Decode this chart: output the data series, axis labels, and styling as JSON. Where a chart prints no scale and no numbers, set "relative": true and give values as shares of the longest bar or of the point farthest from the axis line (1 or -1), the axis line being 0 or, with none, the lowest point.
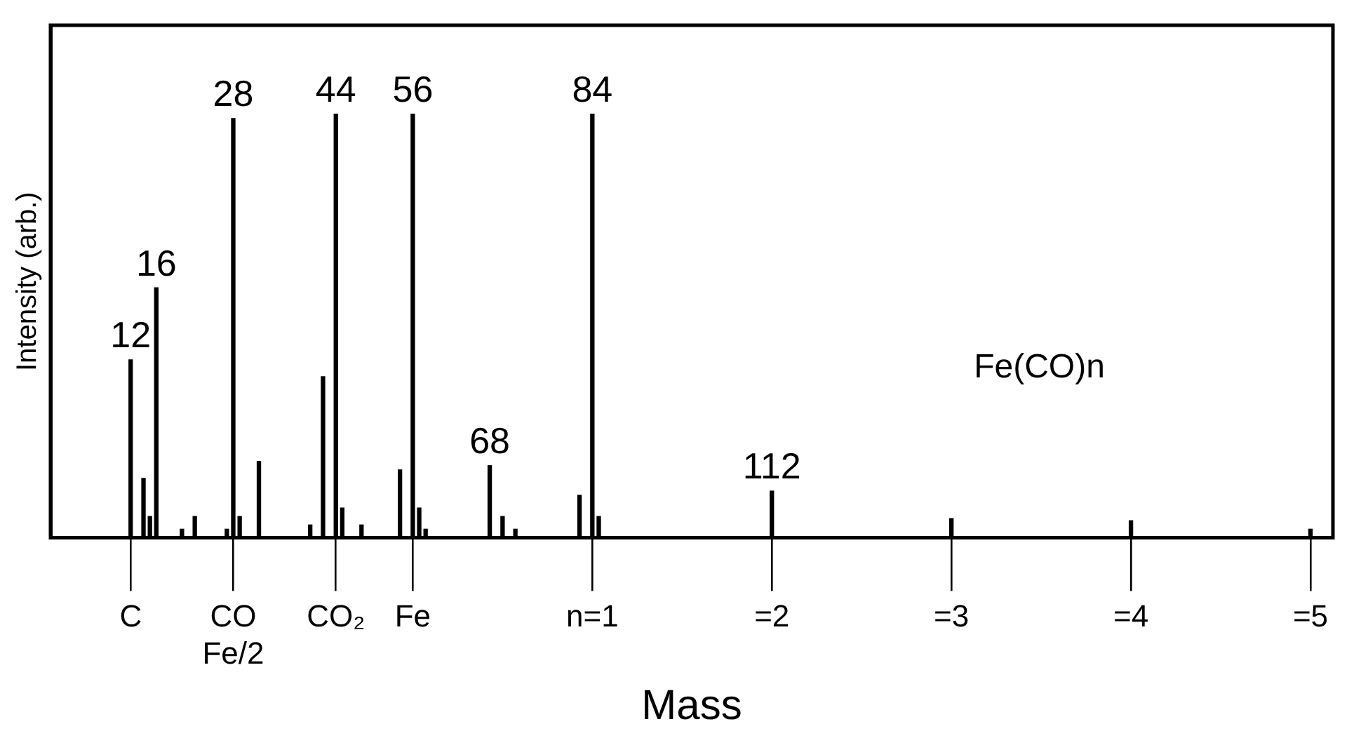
{
  "chart_data": {
    "type": "bar",
    "xlabel": "Mass",
    "ylabel": "Intensity (arb.)",
    "relative": true,
    "color": "#000000",
    "categories": [
      null,
      null,
      null,
      null,
      null,
      null,
      null,
      null,
      null,
      null,
      null,
      null,
      "C",
      null,
      null,
      null,
      null,
      null,
      null,
      null,
      null,
      null,
      null,
      null,
      null,
      null,
      null,
      null,
      "CO\nFe/2",
      null,
      null,
      null,
      null,
      null,
      null,
      null,
      null,
      null,
      null,
      null,
      null,
      null,
      null,
      null,
      "CO₂",
      null,
      null,
      null,
      null,
      null,
      null,
      null,
      null,
      null,
      null,
      null,
      "Fe",
      null,
      null,
      null,
      null,
      null,
      null,
      null,
      null,
      null,
      null,
      null,
      null,
      null,
      null,
      null,
      null,
      null,
      null,
      null,
      null,
      null,
      null,
      null,
      null,
      null,
      null,
      null,
      "n=1",
      null,
      null,
      null,
      null,
      null,
      null,
      null,
      null,
      null,
      null,
      null,
      null,
      null,
      null,
      null,
      null,
      null,
      null,
      null,
      null,
      null,
      null,
      null,
      null,
      null,
      null,
      null,
      "=2",
      null,
      null,
      null,
      null,
      null,
      null,
      null,
      null,
      null,
      null,
      null,
      null,
      null,
      null,
      null,
      null,
      null,
      null,
      null,
      null,
      null,
      null,
      null,
      null,
      null,
      null,
      null,
      "=3",
      null,
      null,
      null,
      null,
      null,
      null,
      null,
      null,
      null,
      null,
      null,
      null,
      null,
      null,
      null,
      null,
      null,
      null,
      null,
      null,
      null,
      null,
      null,
      null,
      null,
      null,
      null,
      "=4",
      null,
      null,
      null,
      null,
      null,
      null,
      null,
      null,
      null,
      null,
      null,
      null,
      null,
      null,
      null,
      null,
      null,
      null,
      null,
      null,
      null,
      null,
      null,
      null,
      null,
      null,
      null,
      "=5",
      null,
      null,
      null
    ],
    "values": [
      null,
      null,
      null,
      null,
      null,
      null,
      null,
      null,
      null,
      null,
      null,
      null,
      0.42,
      null,
      0.14,
      0.05,
      0.59,
      null,
      null,
      null,
      0.02,
      null,
      0.05,
      null,
      null,
      null,
      null,
      0.02,
      0.99,
      0.05,
      null,
      null,
      0.18,
      null,
      null,
      null,
      null,
      null,
      null,
      null,
      0.03,
      null,
      0.38,
      null,
      1,
      0.07,
      null,
      null,
      0.03,
      null,
      null,
      null,
      null,
      null,
      0.16,
      null,
      1,
      0.07,
      0.02,
      null,
      null,
      null,
      null,
      null,
      null,
      null,
      null,
      null,
      0.17,
      null,
      0.05,
      null,
      0.02,
      null,
      null,
      null,
      null,
      null,
      null,
      null,
      null,
      null,
      0.1,
      null,
      1,
      0.05,
      null,
      null,
      null,
      null,
      null,
      null,
      null,
      null,
      null,
      null,
      null,
      null,
      null,
      null,
      null,
      null,
      null,
      null,
      null,
      null,
      null,
      null,
      null,
      null,
      null,
      null,
      0.11,
      null,
      null,
      null,
      null,
      null,
      null,
      null,
      null,
      null,
      null,
      null,
      null,
      null,
      null,
      null,
      null,
      null,
      null,
      null,
      null,
      null,
      null,
      null,
      null,
      null,
      null,
      null,
      0.045,
      null,
      null,
      null,
      null,
      null,
      null,
      null,
      null,
      null,
      null,
      null,
      null,
      null,
      null,
      null,
      null,
      null,
      null,
      null,
      null,
      null,
      null,
      null,
      null,
      null,
      null,
      null,
      0.04,
      null,
      null,
      null,
      null,
      null,
      null,
      null,
      null,
      null,
      null,
      null,
      null,
      null,
      null,
      null,
      null,
      null,
      null,
      null,
      null,
      null,
      null,
      null,
      null,
      null,
      null,
      null,
      0.02,
      null,
      null,
      null
    ],
    "grid": false,
    "legend": false,
    "annotations": [
      {
        "text": "12",
        "y": 0.42
      },
      {
        "text": "16",
        "y": 0.59
      },
      {
        "text": "28",
        "y": 0.99
      },
      {
        "text": "44",
        "y": 1
      },
      {
        "text": "56",
        "y": 1
      },
      {
        "text": "68",
        "y": 0.17
      },
      {
        "text": "84",
        "y": 1
      },
      {
        "text": "112",
        "y": 0.11
      },
      "Fe(CO)n"
    ]
  }
}
